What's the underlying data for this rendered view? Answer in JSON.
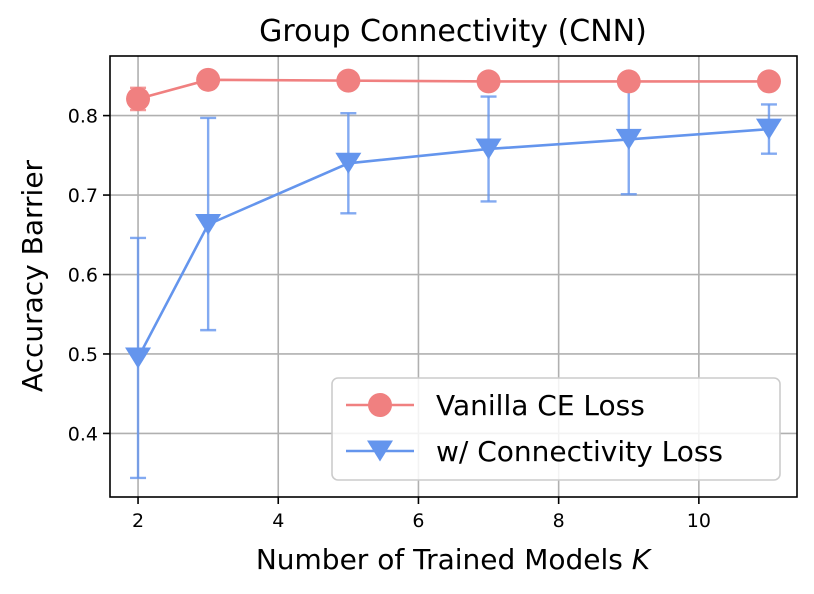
{
  "chart_data": {
    "type": "line",
    "title": "Group Connectivity (CNN)",
    "xlabel": "Number of Trained Models",
    "xlabel_variable": "K",
    "ylabel": "Accuracy Barrier",
    "xlim": [
      1.6,
      11.4
    ],
    "ylim": [
      0.32,
      0.875
    ],
    "xticks": [
      2,
      4,
      6,
      8,
      10
    ],
    "yticks": [
      0.4,
      0.5,
      0.6,
      0.7,
      0.8
    ],
    "xtick_labels": [
      "2",
      "4",
      "6",
      "8",
      "10"
    ],
    "ytick_labels": [
      "0.4",
      "0.5",
      "0.6",
      "0.7",
      "0.8"
    ],
    "grid": true,
    "legend_position": "bottom-right",
    "x": [
      2,
      3,
      5,
      7,
      9,
      11
    ],
    "series": [
      {
        "name": "Vanilla CE Loss",
        "color": "#f08080",
        "marker": "circle",
        "values": [
          0.821,
          0.845,
          0.844,
          0.843,
          0.843,
          0.843
        ],
        "err_low": [
          0.807,
          0.845,
          0.844,
          0.843,
          0.843,
          0.843
        ],
        "err_high": [
          0.835,
          0.845,
          0.844,
          0.843,
          0.843,
          0.843
        ]
      },
      {
        "name": "w/ Connectivity Loss",
        "color": "#6495ed",
        "marker": "triangle-down",
        "values": [
          0.495,
          0.663,
          0.74,
          0.758,
          0.77,
          0.783
        ],
        "err_low": [
          0.344,
          0.53,
          0.677,
          0.692,
          0.701,
          0.752
        ],
        "err_high": [
          0.646,
          0.797,
          0.803,
          0.824,
          0.838,
          0.814
        ]
      }
    ]
  }
}
